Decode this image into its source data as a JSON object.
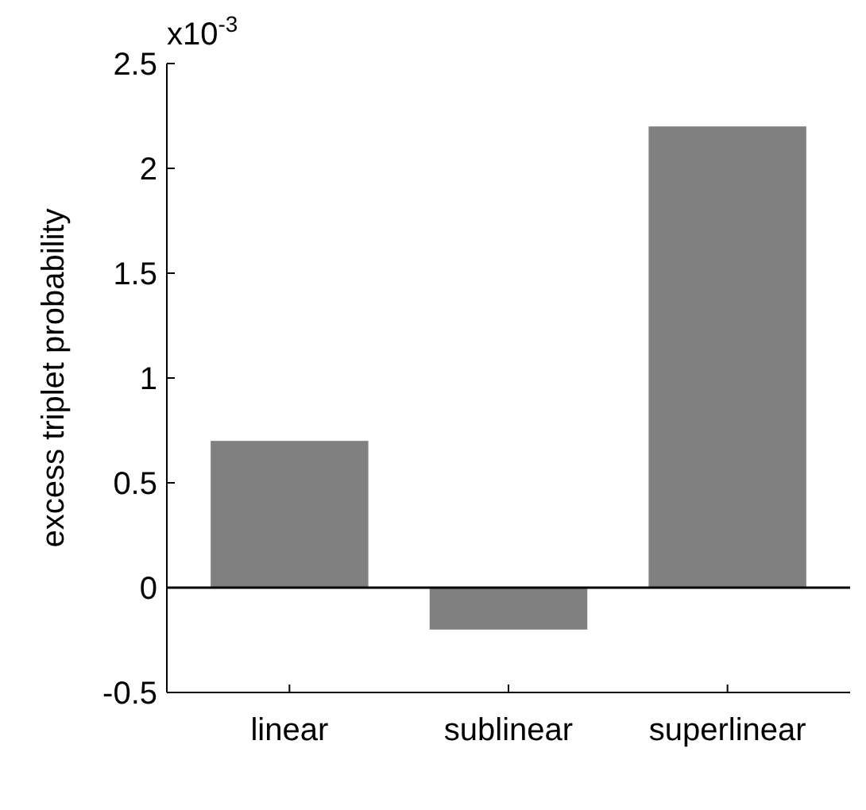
{
  "chart_data": {
    "type": "bar",
    "ylabel": "excess triplet probability",
    "categories": [
      "linear",
      "sublinear",
      "superlinear"
    ],
    "values": [
      0.7,
      -0.2,
      2.2
    ],
    "color": "#808080",
    "ylim": [
      -0.5,
      2.5
    ],
    "yticks": [
      -0.5,
      0,
      0.5,
      1,
      1.5,
      2,
      2.5
    ],
    "ref_lines": [
      {
        "axis": "y",
        "value": 0,
        "color": "#000000"
      }
    ],
    "annotations": [
      "x10$^{-3}$"
    ]
  }
}
